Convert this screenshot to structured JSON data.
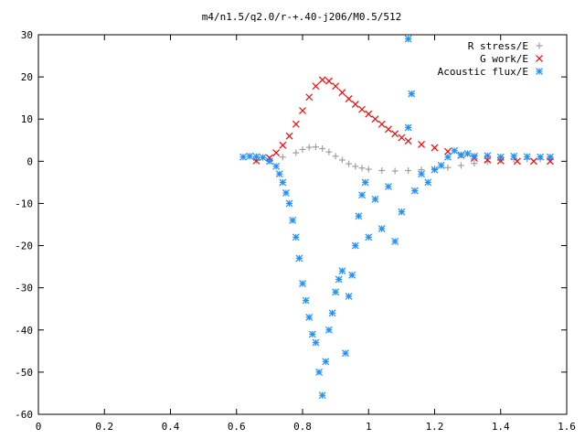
{
  "chart_data": {
    "type": "scatter",
    "title": "m4/n1.5/q2.0/r-+.40-j206/M0.5/512",
    "xlabel": "",
    "ylabel": "",
    "xlim": [
      0,
      1.6
    ],
    "ylim": [
      -60,
      30
    ],
    "x_ticks": [
      "0",
      "0.2",
      "0.4",
      "0.6",
      "0.8",
      "1",
      "1.2",
      "1.4",
      "1.6"
    ],
    "y_ticks": [
      "30",
      "20",
      "10",
      "0",
      "-10",
      "-20",
      "-30",
      "-40",
      "-50",
      "-60"
    ],
    "grid": false,
    "legend_position": "top-right",
    "series": [
      {
        "name": "R stress/E",
        "marker": "plus",
        "color": "#a0a0a0",
        "points": [
          [
            0.66,
            0.2
          ],
          [
            0.7,
            0.4
          ],
          [
            0.74,
            1.0
          ],
          [
            0.78,
            2.0
          ],
          [
            0.8,
            2.8
          ],
          [
            0.82,
            3.3
          ],
          [
            0.84,
            3.4
          ],
          [
            0.86,
            3.0
          ],
          [
            0.88,
            2.2
          ],
          [
            0.9,
            1.2
          ],
          [
            0.92,
            0.3
          ],
          [
            0.94,
            -0.6
          ],
          [
            0.96,
            -1.2
          ],
          [
            0.98,
            -1.6
          ],
          [
            1.0,
            -1.9
          ],
          [
            1.04,
            -2.2
          ],
          [
            1.08,
            -2.3
          ],
          [
            1.12,
            -2.2
          ],
          [
            1.16,
            -2.0
          ],
          [
            1.2,
            -1.8
          ],
          [
            1.24,
            -1.5
          ],
          [
            1.28,
            -1.0
          ],
          [
            1.32,
            -0.5
          ],
          [
            1.36,
            -0.1
          ],
          [
            1.4,
            0.2
          ],
          [
            1.44,
            0.4
          ],
          [
            1.48,
            0.5
          ],
          [
            1.52,
            0.5
          ],
          [
            1.55,
            0.5
          ]
        ]
      },
      {
        "name": "G work/E",
        "marker": "cross",
        "color": "#ff0000",
        "points": [
          [
            0.66,
            0.1
          ],
          [
            0.7,
            0.8
          ],
          [
            0.72,
            2.0
          ],
          [
            0.74,
            3.8
          ],
          [
            0.76,
            6.0
          ],
          [
            0.78,
            8.8
          ],
          [
            0.8,
            12.0
          ],
          [
            0.82,
            15.2
          ],
          [
            0.84,
            17.8
          ],
          [
            0.86,
            19.3
          ],
          [
            0.88,
            19.0
          ],
          [
            0.9,
            17.8
          ],
          [
            0.92,
            16.3
          ],
          [
            0.94,
            14.8
          ],
          [
            0.96,
            13.5
          ],
          [
            0.98,
            12.3
          ],
          [
            1.0,
            11.2
          ],
          [
            1.02,
            10.0
          ],
          [
            1.04,
            8.8
          ],
          [
            1.06,
            7.6
          ],
          [
            1.08,
            6.5
          ],
          [
            1.1,
            5.6
          ],
          [
            1.12,
            4.8
          ],
          [
            1.16,
            4.0
          ],
          [
            1.2,
            3.2
          ],
          [
            1.24,
            2.3
          ],
          [
            1.28,
            1.4
          ],
          [
            1.32,
            0.7
          ],
          [
            1.36,
            0.3
          ],
          [
            1.4,
            0.1
          ],
          [
            1.45,
            0.0
          ],
          [
            1.5,
            0.0
          ],
          [
            1.55,
            0.0
          ]
        ]
      },
      {
        "name": "Acoustic flux/E",
        "marker": "star",
        "color": "#1e90ff",
        "points": [
          [
            0.62,
            1.0
          ],
          [
            0.64,
            1.2
          ],
          [
            0.66,
            1.1
          ],
          [
            0.68,
            0.9
          ],
          [
            0.7,
            0.0
          ],
          [
            0.72,
            -1.2
          ],
          [
            0.73,
            -3.0
          ],
          [
            0.74,
            -5.0
          ],
          [
            0.75,
            -7.5
          ],
          [
            0.76,
            -10.0
          ],
          [
            0.77,
            -14.0
          ],
          [
            0.78,
            -18.0
          ],
          [
            0.79,
            -23.0
          ],
          [
            0.8,
            -29.0
          ],
          [
            0.81,
            -33.0
          ],
          [
            0.82,
            -37.0
          ],
          [
            0.83,
            -41.0
          ],
          [
            0.84,
            -43.0
          ],
          [
            0.85,
            -50.0
          ],
          [
            0.86,
            -55.5
          ],
          [
            0.87,
            -47.5
          ],
          [
            0.88,
            -40.0
          ],
          [
            0.89,
            -36.0
          ],
          [
            0.9,
            -31.0
          ],
          [
            0.91,
            -28.0
          ],
          [
            0.92,
            -26.0
          ],
          [
            0.93,
            -45.5
          ],
          [
            0.94,
            -32.0
          ],
          [
            0.95,
            -27.0
          ],
          [
            0.96,
            -20.0
          ],
          [
            0.97,
            -13.0
          ],
          [
            0.98,
            -8.0
          ],
          [
            0.99,
            -5.0
          ],
          [
            1.0,
            -18.0
          ],
          [
            1.02,
            -9.0
          ],
          [
            1.04,
            -16.0
          ],
          [
            1.06,
            -6.0
          ],
          [
            1.08,
            -19.0
          ],
          [
            1.1,
            -12.0
          ],
          [
            1.12,
            29.0
          ],
          [
            1.13,
            16.0
          ],
          [
            1.12,
            8.0
          ],
          [
            1.14,
            -7.0
          ],
          [
            1.16,
            -3.0
          ],
          [
            1.18,
            -5.0
          ],
          [
            1.2,
            -2.0
          ],
          [
            1.22,
            -1.0
          ],
          [
            1.24,
            1.0
          ],
          [
            1.26,
            2.5
          ],
          [
            1.28,
            1.5
          ],
          [
            1.3,
            1.8
          ],
          [
            1.32,
            1.2
          ],
          [
            1.36,
            1.3
          ],
          [
            1.4,
            1.0
          ],
          [
            1.44,
            1.2
          ],
          [
            1.48,
            1.1
          ],
          [
            1.52,
            1.0
          ],
          [
            1.55,
            1.0
          ]
        ]
      }
    ]
  }
}
